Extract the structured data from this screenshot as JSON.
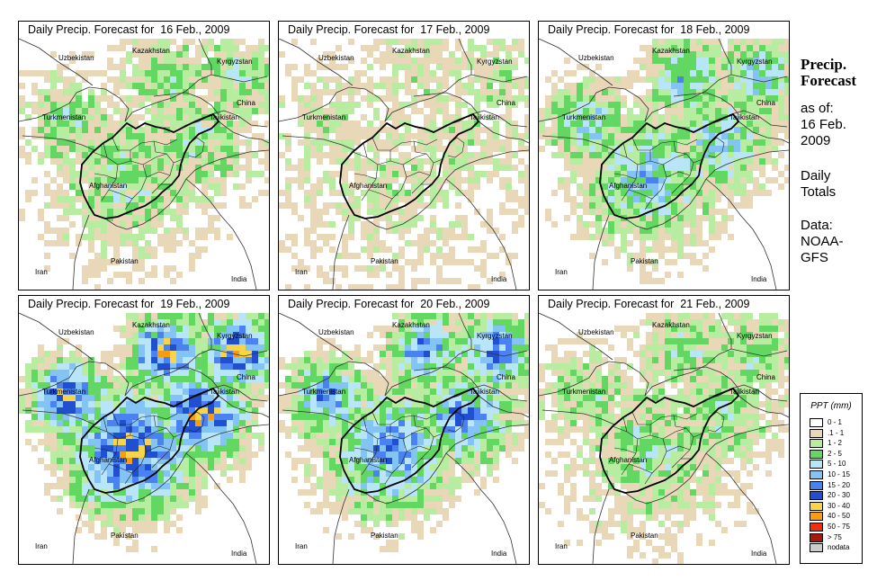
{
  "panels": [
    {
      "title": "Daily Precip. Forecast for  16 Feb., 2009",
      "intensity": 1
    },
    {
      "title": "Daily Precip. Forecast for  17 Feb., 2009",
      "intensity": 0
    },
    {
      "title": "Daily Precip. Forecast for  18 Feb., 2009",
      "intensity": 2
    },
    {
      "title": "Daily Precip. Forecast for  19 Feb., 2009",
      "intensity": 4
    },
    {
      "title": "Daily Precip. Forecast for  20 Feb., 2009",
      "intensity": 3
    },
    {
      "title": "Daily Precip. Forecast for  21 Feb., 2009",
      "intensity": 1
    }
  ],
  "map_labels": {
    "uzbekistan": "Uzbekistan",
    "kazakhstan": "Kazakhstan",
    "kyrgyzstan": "Kyrgyzstan",
    "china": "China",
    "turkmenistan": "Turkmenistan",
    "tajikistan": "Tajikistan",
    "afghanistan": "Afghanistan",
    "pakistan": "Pakistan",
    "iran": "Iran",
    "india": "India"
  },
  "sidebar": {
    "title_line1": "Precip.",
    "title_line2": "Forecast",
    "as_of": "as of:",
    "date_line1": "16 Feb.",
    "date_line2": "2009",
    "totals_line1": "Daily",
    "totals_line2": "Totals",
    "source_line1": "Data:",
    "source_line2": "NOAA-",
    "source_line3": "GFS"
  },
  "legend": {
    "title": "PPT (mm)",
    "items": [
      {
        "label": "0 - 1",
        "color": "#ffffff"
      },
      {
        "label": ".1 - 1",
        "color": "#e8d8b8"
      },
      {
        "label": "1 - 2",
        "color": "#b8eca0"
      },
      {
        "label": "2 - 5",
        "color": "#62d862"
      },
      {
        "label": "5 - 10",
        "color": "#b8e6f8"
      },
      {
        "label": "10 - 15",
        "color": "#84c4f4"
      },
      {
        "label": "15 - 20",
        "color": "#4a82f2"
      },
      {
        "label": "20 - 30",
        "color": "#2050d0"
      },
      {
        "label": "30 - 40",
        "color": "#f8d448"
      },
      {
        "label": "40 - 50",
        "color": "#f89c10"
      },
      {
        "label": "50 - 75",
        "color": "#ee3010"
      },
      {
        "label": "> 75",
        "color": "#a81810"
      },
      {
        "label": "nodata",
        "color": "#cccccc"
      }
    ]
  }
}
